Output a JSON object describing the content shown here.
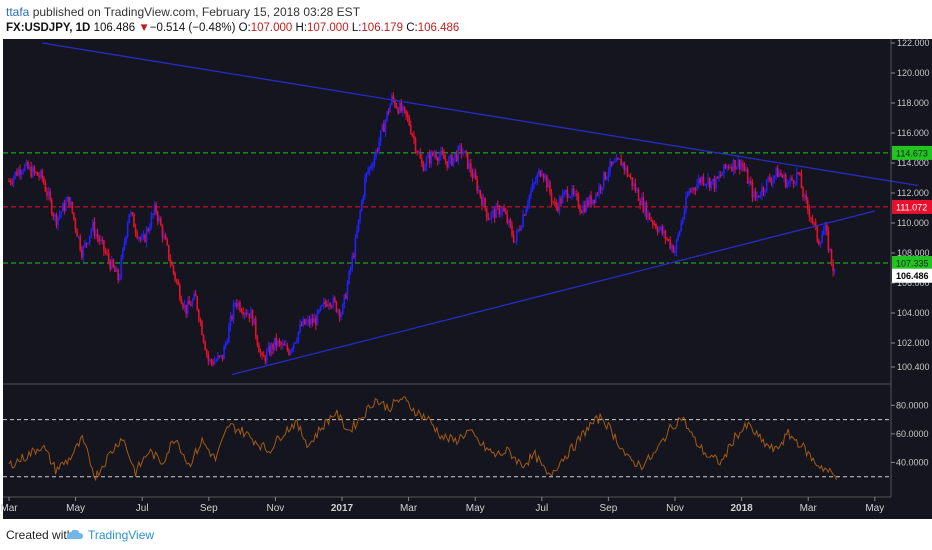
{
  "header": {
    "author": "ttafa",
    "published": "published on TradingView.com, February 15, 2018 03:28 EST",
    "symbol": "FX:USDJPY, 1D",
    "last": "106.486",
    "arrow": "▼",
    "change": "−0.514 (−0.48%)",
    "o_label": "O:",
    "o_value": "107.000",
    "h_label": "H:",
    "h_value": "107.000",
    "l_label": "L:",
    "l_value": "106.179",
    "c_label": "C:",
    "c_value": "106.486"
  },
  "footer": {
    "created_with": "Created with",
    "brand": "TradingView"
  },
  "colors": {
    "background": "#14151f",
    "up_candle": "#2222ff",
    "down_candle": "#e8112d",
    "trendline": "#2a2ac8",
    "green_level": "#22c322",
    "red_level": "#e8112d",
    "oscillator": "#a35a12"
  },
  "chart_data": {
    "type": "candlestick",
    "symbol": "FX:USDJPY",
    "interval": "1D",
    "x_tick_labels": [
      "Mar",
      "May",
      "Jul",
      "Sep",
      "Nov",
      "2017",
      "Mar",
      "May",
      "Jul",
      "Sep",
      "Nov",
      "2018",
      "Mar",
      "May"
    ],
    "y_tick_labels": [
      "122.000",
      "120.000",
      "118.000",
      "116.000",
      "114.000",
      "112.000",
      "110.000",
      "108.000",
      "106.000",
      "104.000",
      "102.000",
      "100.400"
    ],
    "ylim": [
      99.6,
      122.0
    ],
    "price_path": {
      "x_month_index": [
        0,
        0.4,
        1.0,
        1.4,
        1.8,
        2.2,
        2.5,
        3.0,
        3.3,
        3.6,
        4.0,
        4.4,
        4.9,
        5.3,
        5.6,
        6.0,
        6.4,
        6.8,
        7.3,
        7.6,
        8.0,
        8.4,
        8.8,
        9.2,
        9.6,
        10.0,
        10.4,
        10.7,
        11.0,
        11.5,
        12.0,
        12.4,
        12.8,
        13.2,
        13.6,
        14.0,
        14.4,
        14.8,
        15.2,
        15.6,
        16.0,
        16.4,
        16.8,
        17.2,
        17.6,
        18.0,
        18.4,
        18.8,
        19.2,
        19.6,
        20.0,
        20.4,
        20.8,
        21.2,
        21.6,
        22.0,
        22.4,
        22.8,
        23.1,
        23.4,
        23.7,
        23.9,
        24.1,
        24.3,
        24.5,
        24.8
      ],
      "close": [
        112.8,
        113.8,
        113.0,
        110.2,
        111.6,
        108.0,
        109.8,
        107.5,
        106.2,
        110.8,
        108.6,
        111.0,
        107.0,
        104.2,
        105.0,
        100.7,
        101.0,
        104.8,
        103.8,
        100.8,
        102.0,
        101.5,
        103.2,
        103.5,
        105.0,
        104.0,
        108.6,
        113.0,
        114.6,
        118.3,
        116.8,
        113.8,
        114.7,
        114.0,
        114.9,
        112.8,
        110.4,
        111.0,
        108.8,
        111.7,
        113.7,
        111.0,
        112.2,
        111.0,
        111.8,
        113.6,
        114.1,
        112.3,
        110.5,
        109.4,
        108.2,
        112.0,
        113.0,
        112.6,
        113.9,
        114.0,
        111.6,
        112.8,
        113.4,
        112.6,
        113.3,
        111.4,
        110.4,
        108.8,
        109.6,
        106.5
      ]
    },
    "trendlines": [
      {
        "name": "descending",
        "from": [
          1.0,
          122.0
        ],
        "to": [
          27.3,
          112.5
        ]
      },
      {
        "name": "ascending",
        "from": [
          6.7,
          99.9
        ],
        "to": [
          26.0,
          110.8
        ]
      }
    ],
    "horizontal_levels": [
      {
        "label": "114.673",
        "value": 114.673,
        "color": "green"
      },
      {
        "label": "111.072",
        "value": 111.072,
        "color": "red"
      },
      {
        "label": "107.335",
        "value": 107.335,
        "color": "green"
      }
    ],
    "last_price_label": "106.486",
    "oscillator": {
      "y_tick_labels": [
        "80.0000",
        "60.0000",
        "40.0000"
      ],
      "ylim": [
        20,
        90
      ],
      "levels": [
        70,
        30
      ],
      "x_month_index": [
        0,
        0.5,
        1.0,
        1.4,
        1.8,
        2.2,
        2.6,
        3.0,
        3.4,
        3.8,
        4.2,
        4.6,
        5.0,
        5.4,
        5.8,
        6.2,
        6.6,
        7.0,
        7.4,
        7.8,
        8.2,
        8.6,
        9.0,
        9.4,
        9.8,
        10.2,
        10.6,
        11.0,
        11.4,
        11.8,
        12.2,
        12.6,
        13.0,
        13.4,
        13.8,
        14.2,
        14.6,
        15.0,
        15.4,
        15.8,
        16.2,
        16.6,
        17.0,
        17.4,
        17.8,
        18.2,
        18.6,
        19.0,
        19.4,
        19.8,
        20.2,
        20.6,
        21.0,
        21.4,
        21.8,
        22.2,
        22.6,
        23.0,
        23.4,
        23.8,
        24.2,
        24.6,
        24.9
      ],
      "values": [
        38,
        44,
        52,
        35,
        42,
        56,
        30,
        45,
        58,
        33,
        48,
        40,
        58,
        38,
        55,
        42,
        66,
        62,
        55,
        48,
        60,
        68,
        52,
        65,
        75,
        62,
        72,
        84,
        78,
        85,
        76,
        70,
        58,
        55,
        62,
        52,
        45,
        48,
        38,
        45,
        30,
        42,
        52,
        65,
        72,
        58,
        42,
        38,
        46,
        62,
        72,
        55,
        44,
        40,
        58,
        66,
        55,
        48,
        60,
        52,
        40,
        34,
        28
      ]
    }
  }
}
